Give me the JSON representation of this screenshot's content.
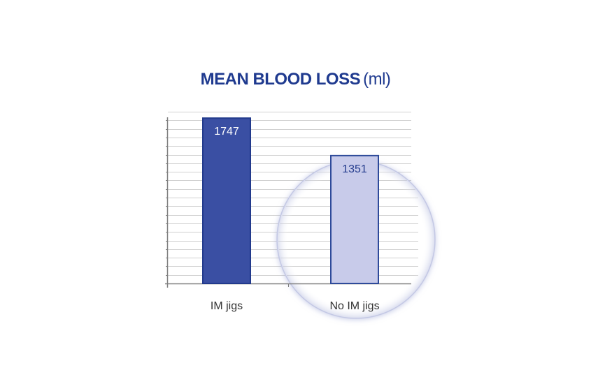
{
  "chart_data": {
    "type": "bar",
    "title": "MEAN BLOOD LOSS",
    "title_unit": "(ml)",
    "categories": [
      "IM jigs",
      "No IM jigs"
    ],
    "values": [
      1747,
      1351
    ],
    "value_labels": [
      "1747",
      "1351"
    ],
    "ylim": [
      0,
      1800
    ],
    "grid": true,
    "highlighted_category": "No IM jigs",
    "xlabel": "",
    "ylabel": ""
  },
  "colors": {
    "title": "#1f3a8f",
    "bar_primary_fill": "#3a4fa3",
    "bar_primary_stroke": "#223a8c",
    "bar_highlight_fill": "#c8cbea",
    "bar_highlight_stroke": "#2e4a9a",
    "grid": "#d0d0d0",
    "axis": "#808080",
    "primary_label_text": "#ffffff",
    "highlight_label_text": "#223a8c"
  }
}
